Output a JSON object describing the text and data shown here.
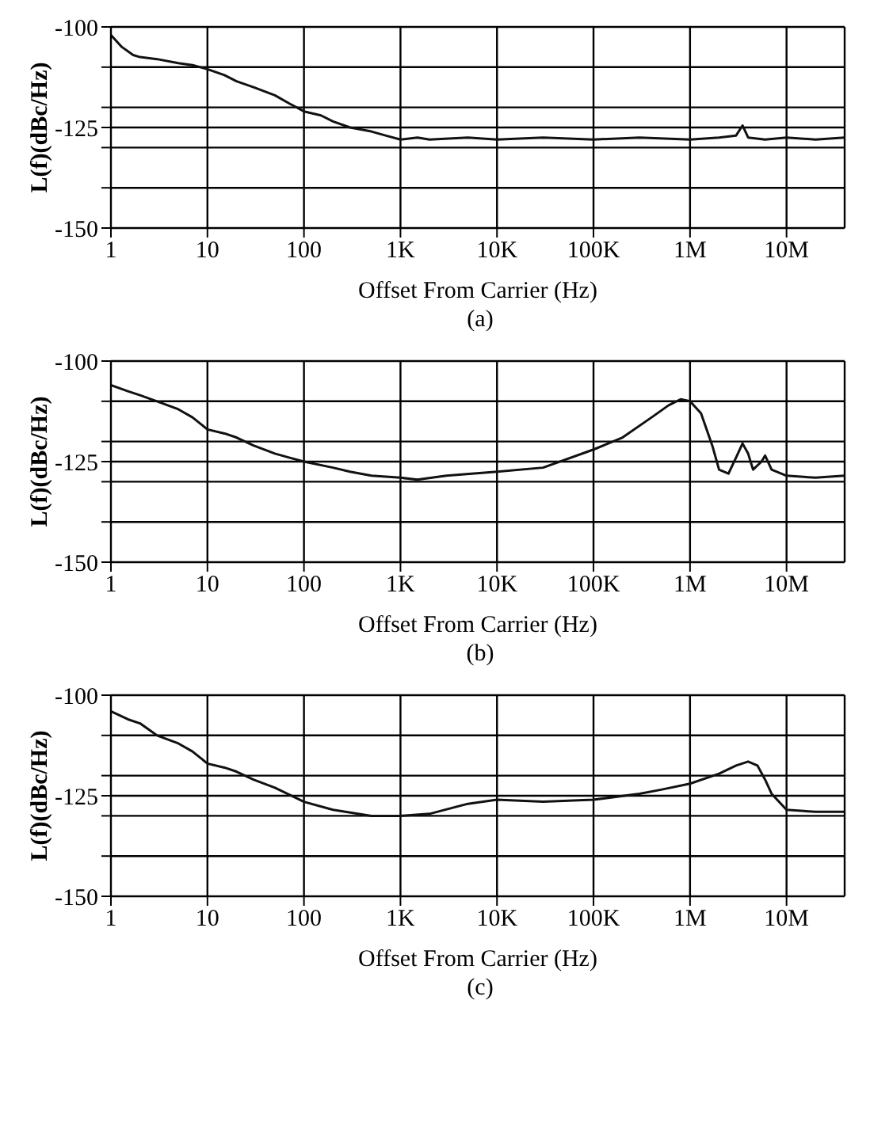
{
  "chart_data": [
    {
      "type": "line",
      "xlabel": "Offset From  Carrier (Hz)",
      "ylabel": "L(f)(dBc/Hz)",
      "annotations": [
        "(a)"
      ],
      "log": "x",
      "grid": true,
      "xlim": [
        1,
        40000000
      ],
      "xticks": [
        {
          "value": 1,
          "label": "1"
        },
        {
          "value": 10,
          "label": "10"
        },
        {
          "value": 100,
          "label": "100"
        },
        {
          "value": 1000,
          "label": "1K"
        },
        {
          "value": 10000,
          "label": "10K"
        },
        {
          "value": 100000,
          "label": "100K"
        },
        {
          "value": 1000000,
          "label": "1M"
        },
        {
          "value": 10000000,
          "label": "10M"
        }
      ],
      "ylim": [
        -150,
        -100
      ],
      "yticks": [
        -150,
        {
          "value": -140,
          "label": null
        },
        {
          "value": -130,
          "label": null
        },
        -125,
        {
          "value": -120,
          "label": null
        },
        {
          "value": -110,
          "label": null
        },
        -100
      ],
      "x": [
        1,
        1.3,
        1.7,
        2,
        3,
        5,
        7,
        10,
        15,
        20,
        30,
        50,
        70,
        100,
        150,
        200,
        300,
        500,
        700,
        1000,
        1500,
        2000,
        5000,
        10000,
        30000,
        100000,
        300000,
        1000000,
        2000000,
        3000000,
        3500000,
        4000000,
        6000000,
        10000000,
        20000000,
        40000000
      ],
      "series": [
        {
          "color": "#111111",
          "values": [
            -102,
            -105,
            -107,
            -107.5,
            -108,
            -109,
            -109.5,
            -110.5,
            -112,
            -113.5,
            -115,
            -117,
            -119,
            -121,
            -122,
            -123.5,
            -125,
            -126,
            -127,
            -128,
            -127.5,
            -128,
            -127.5,
            -128,
            -127.5,
            -128,
            -127.5,
            -128,
            -127.5,
            -127,
            -124.5,
            -127.5,
            -128,
            -127.5,
            -128,
            -127.5
          ]
        }
      ]
    },
    {
      "type": "line",
      "xlabel": "Offset From  Carrier (Hz)",
      "ylabel": "L(f)(dBc/Hz)",
      "annotations": [
        "(b)"
      ],
      "log": "x",
      "grid": true,
      "xlim": [
        1,
        40000000
      ],
      "xticks": [
        {
          "value": 1,
          "label": "1"
        },
        {
          "value": 10,
          "label": "10"
        },
        {
          "value": 100,
          "label": "100"
        },
        {
          "value": 1000,
          "label": "1K"
        },
        {
          "value": 10000,
          "label": "10K"
        },
        {
          "value": 100000,
          "label": "100K"
        },
        {
          "value": 1000000,
          "label": "1M"
        },
        {
          "value": 10000000,
          "label": "10M"
        }
      ],
      "ylim": [
        -150,
        -100
      ],
      "yticks": [
        -150,
        {
          "value": -140,
          "label": null
        },
        {
          "value": -130,
          "label": null
        },
        -125,
        {
          "value": -120,
          "label": null
        },
        {
          "value": -110,
          "label": null
        },
        -100
      ],
      "x": [
        1,
        1.5,
        2,
        3,
        5,
        7,
        10,
        15,
        20,
        30,
        50,
        70,
        100,
        200,
        300,
        500,
        1000,
        1500,
        3000,
        10000,
        30000,
        100000,
        200000,
        400000,
        600000,
        800000,
        1000000,
        1300000,
        1700000,
        2000000,
        2500000,
        3000000,
        3500000,
        4000000,
        4500000,
        5500000,
        6000000,
        7000000,
        10000000,
        20000000,
        40000000
      ],
      "series": [
        {
          "color": "#111111",
          "values": [
            -106,
            -107.5,
            -108.5,
            -110,
            -112,
            -114,
            -117,
            -118,
            -119,
            -121,
            -123,
            -124,
            -125,
            -126.5,
            -127.5,
            -128.5,
            -129,
            -129.5,
            -128.5,
            -127.5,
            -126.5,
            -122,
            -119,
            -114,
            -111,
            -109.5,
            -110,
            -113,
            -121,
            -127,
            -128,
            -124,
            -120.5,
            -123,
            -127,
            -125,
            -123.5,
            -127,
            -128.5,
            -129,
            -128.5
          ]
        }
      ]
    },
    {
      "type": "line",
      "xlabel": "Offset From  Carrier (Hz)",
      "ylabel": "L(f)(dBc/Hz)",
      "annotations": [
        "(c)"
      ],
      "log": "x",
      "grid": true,
      "xlim": [
        1,
        40000000
      ],
      "xticks": [
        {
          "value": 1,
          "label": "1"
        },
        {
          "value": 10,
          "label": "10"
        },
        {
          "value": 100,
          "label": "100"
        },
        {
          "value": 1000,
          "label": "1K"
        },
        {
          "value": 10000,
          "label": "10K"
        },
        {
          "value": 100000,
          "label": "100K"
        },
        {
          "value": 1000000,
          "label": "1M"
        },
        {
          "value": 10000000,
          "label": "10M"
        }
      ],
      "ylim": [
        -150,
        -100
      ],
      "yticks": [
        -150,
        {
          "value": -140,
          "label": null
        },
        {
          "value": -130,
          "label": null
        },
        -125,
        {
          "value": -120,
          "label": null
        },
        {
          "value": -110,
          "label": null
        },
        -100
      ],
      "x": [
        1,
        1.5,
        2,
        3,
        5,
        7,
        10,
        15,
        20,
        30,
        50,
        100,
        200,
        500,
        1000,
        2000,
        5000,
        10000,
        30000,
        100000,
        300000,
        500000,
        1000000,
        2000000,
        3000000,
        4000000,
        5000000,
        6000000,
        7000000,
        10000000,
        20000000,
        40000000
      ],
      "series": [
        {
          "color": "#111111",
          "values": [
            -104,
            -106,
            -107,
            -110,
            -112,
            -114,
            -117,
            -118,
            -119,
            -121,
            -123,
            -126.5,
            -128.5,
            -130,
            -130,
            -129.5,
            -127,
            -126,
            -126.5,
            -126,
            -124.5,
            -123.5,
            -122,
            -119.5,
            -117.5,
            -116.5,
            -117.5,
            -121,
            -124.5,
            -128.5,
            -129,
            -129
          ]
        }
      ]
    }
  ]
}
